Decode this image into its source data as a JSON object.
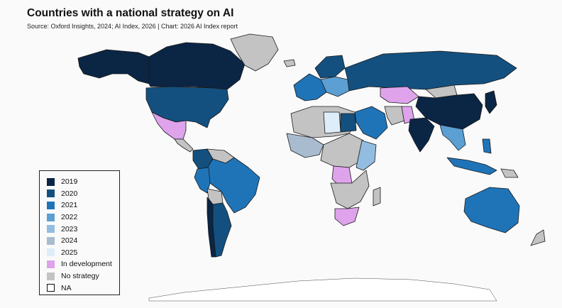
{
  "header": {
    "title": "Countries with a national strategy on AI",
    "subtitle": "Source: Oxford Insights, 2024; AI Index, 2026 | Chart: 2026 AI Index report"
  },
  "legend": {
    "items": [
      {
        "label": "2019",
        "color": "#0b2545"
      },
      {
        "label": "2020",
        "color": "#13507f"
      },
      {
        "label": "2021",
        "color": "#1f74b8"
      },
      {
        "label": "2022",
        "color": "#5b9fd3"
      },
      {
        "label": "2023",
        "color": "#92bde0"
      },
      {
        "label": "2024",
        "color": "#a9bccf"
      },
      {
        "label": "2025",
        "color": "#ddeefa"
      },
      {
        "label": "In development",
        "color": "#dfa3ec"
      },
      {
        "label": "No strategy",
        "color": "#c3c3c3"
      },
      {
        "label": "NA",
        "color": "#ffffff"
      }
    ]
  },
  "colors": {
    "ocean": "#fafafa",
    "border": "#1a1a1a"
  }
}
